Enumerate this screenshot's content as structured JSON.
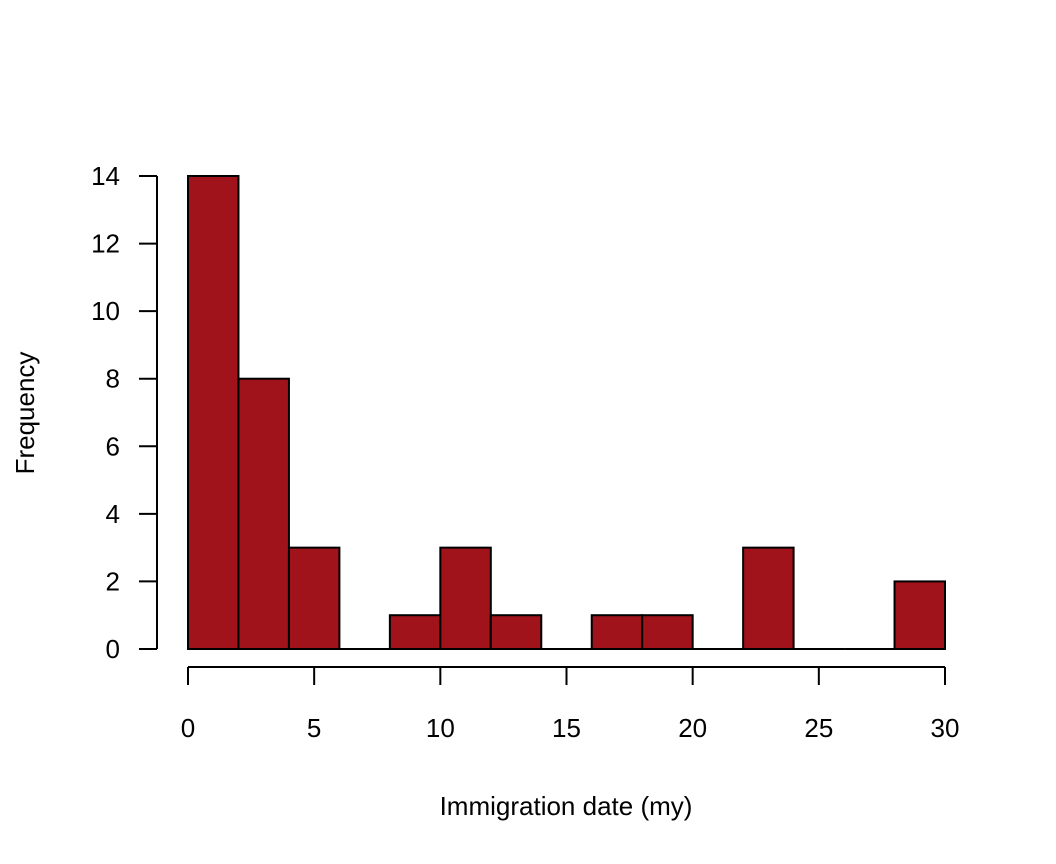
{
  "chart_data": {
    "type": "bar",
    "histogram": true,
    "title": "",
    "xlabel": "Immigration date (my)",
    "ylabel": "Frequency",
    "bin_edges": [
      0,
      2,
      4,
      6,
      8,
      10,
      12,
      14,
      16,
      18,
      20,
      22,
      24,
      26,
      28,
      30
    ],
    "values": [
      14,
      8,
      3,
      0,
      1,
      3,
      1,
      0,
      1,
      1,
      0,
      3,
      0,
      0,
      2
    ],
    "xlim": [
      0,
      30
    ],
    "ylim": [
      0,
      14
    ],
    "xticks": [
      0,
      5,
      10,
      15,
      20,
      25,
      30
    ],
    "yticks": [
      0,
      2,
      4,
      6,
      8,
      10,
      12,
      14
    ],
    "bar_color": "#A0131B",
    "edge_color": "#000000",
    "grid": false,
    "legend": "none"
  }
}
